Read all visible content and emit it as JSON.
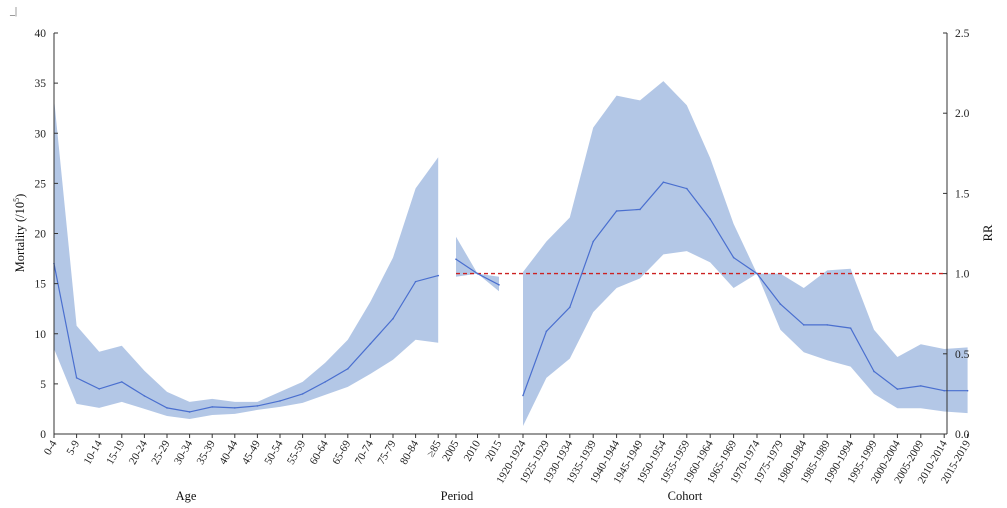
{
  "corner_mark": "_|",
  "chart_data": {
    "type": "line",
    "ylabel_left_main": "Mortality (/10",
    "ylabel_left_sup": "5",
    "ylabel_left_tail": ")",
    "ylabel_right": "RR",
    "ylim_left": [
      0,
      40
    ],
    "yticks_left": [
      "0",
      "5",
      "10",
      "15",
      "20",
      "25",
      "30",
      "35",
      "40"
    ],
    "ylim_right": [
      0,
      2.5
    ],
    "yticks_right": [
      "0.0",
      "0.5",
      "1.0",
      "1.5",
      "2.0",
      "2.5"
    ],
    "reference_line_rr": 1.0,
    "colors": {
      "line": "#4a6fcf",
      "band": "#b3c7e6",
      "reference": "#cc2222"
    },
    "panels": [
      {
        "label": "Age",
        "axis": "left",
        "categories": [
          "0-4",
          "5-9",
          "10-14",
          "15-19",
          "20-24",
          "25-29",
          "30-34",
          "35-39",
          "40-44",
          "45-49",
          "50-54",
          "55-59",
          "60-64",
          "65-69",
          "70-74",
          "75-79",
          "80-84",
          "≥85"
        ],
        "values": [
          17.0,
          5.6,
          4.5,
          5.2,
          3.8,
          2.6,
          2.2,
          2.7,
          2.6,
          2.8,
          3.3,
          4.0,
          5.2,
          6.5,
          9.0,
          11.5,
          15.2,
          15.8
        ],
        "lower": [
          8.5,
          3.0,
          2.6,
          3.2,
          2.5,
          1.8,
          1.5,
          1.9,
          2.0,
          2.4,
          2.7,
          3.1,
          3.9,
          4.7,
          6.0,
          7.4,
          9.4,
          9.1
        ],
        "upper": [
          33.5,
          10.8,
          8.2,
          8.8,
          6.3,
          4.2,
          3.2,
          3.5,
          3.2,
          3.2,
          4.2,
          5.2,
          7.1,
          9.4,
          13.2,
          17.6,
          24.5,
          27.6
        ]
      },
      {
        "label": "Period",
        "axis": "right",
        "categories": [
          "2005",
          "2010",
          "2015"
        ],
        "values": [
          1.09,
          1.0,
          0.93
        ],
        "lower": [
          0.98,
          1.0,
          0.89
        ],
        "upper": [
          1.23,
          1.0,
          0.98
        ]
      },
      {
        "label": "Cohort",
        "axis": "right",
        "categories": [
          "1920-1924",
          "1925-1929",
          "1930-1934",
          "1935-1939",
          "1940-1944",
          "1945-1949",
          "1950-1954",
          "1955-1959",
          "1960-1964",
          "1965-1969",
          "1970-1974",
          "1975-1979",
          "1980-1984",
          "1985-1989",
          "1990-1994",
          "1995-1999",
          "2000-2004",
          "2005-2009",
          "2010-2014",
          "2015-2019"
        ],
        "values": [
          0.24,
          0.64,
          0.79,
          1.2,
          1.39,
          1.4,
          1.57,
          1.53,
          1.34,
          1.1,
          1.0,
          0.81,
          0.68,
          0.68,
          0.66,
          0.39,
          0.28,
          0.3,
          0.27,
          0.27
        ],
        "lower": [
          0.05,
          0.35,
          0.47,
          0.76,
          0.91,
          0.97,
          1.12,
          1.14,
          1.07,
          0.91,
          1.0,
          0.65,
          0.51,
          0.46,
          0.42,
          0.25,
          0.16,
          0.16,
          0.14,
          0.13
        ],
        "upper": [
          1.01,
          1.2,
          1.35,
          1.91,
          2.11,
          2.08,
          2.2,
          2.05,
          1.72,
          1.31,
          1.0,
          1.0,
          0.91,
          1.02,
          1.03,
          0.65,
          0.48,
          0.56,
          0.53,
          0.54
        ]
      }
    ]
  }
}
